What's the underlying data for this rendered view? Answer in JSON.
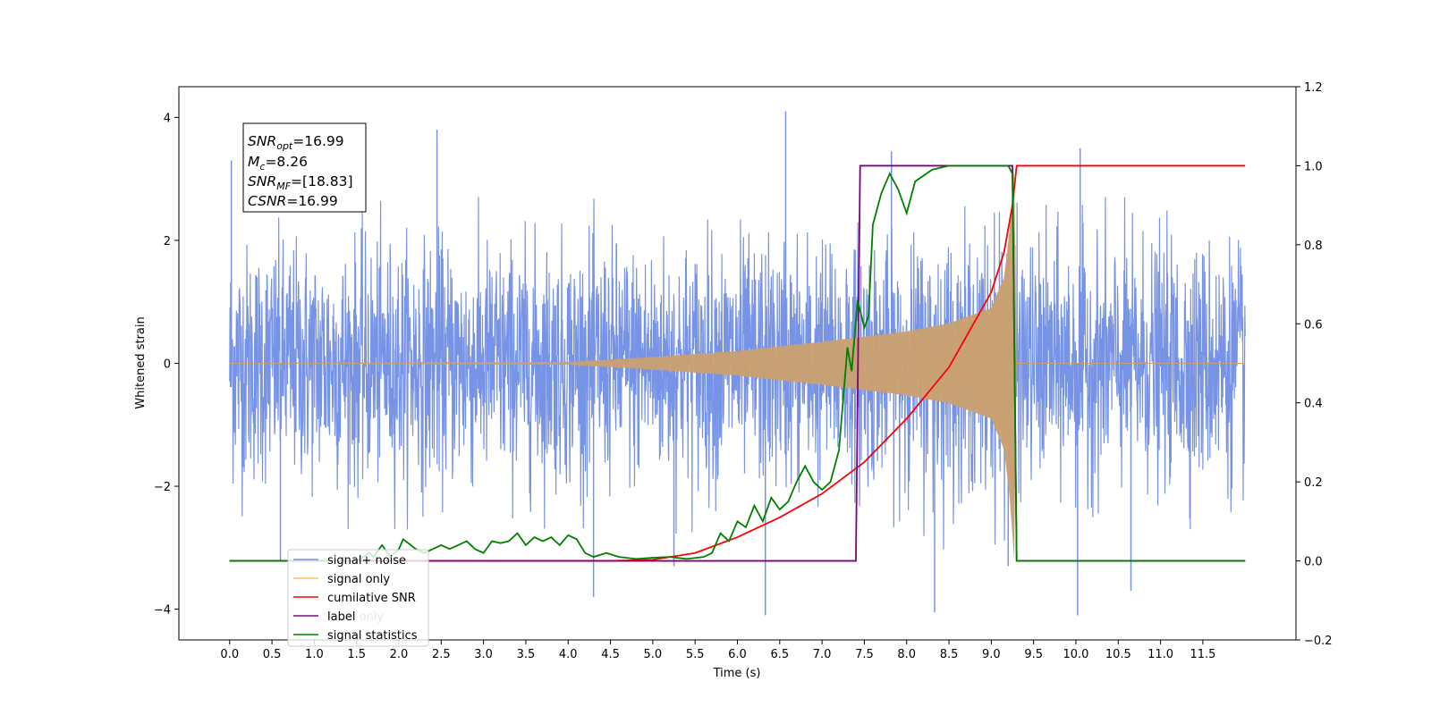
{
  "chart_data": {
    "type": "line",
    "xlabel": "Time (s)",
    "ylabel": "Whitened strain",
    "xlim": [
      -0.6,
      12.6
    ],
    "ylim": [
      -4.5,
      4.5
    ],
    "y2lim": [
      -0.2,
      1.2
    ],
    "x_ticks": [
      "0.0",
      "0.5",
      "1.0",
      "1.5",
      "2.0",
      "2.5",
      "3.0",
      "3.5",
      "4.0",
      "4.5",
      "5.0",
      "5.5",
      "6.0",
      "6.5",
      "7.0",
      "7.5",
      "8.0",
      "8.5",
      "9.0",
      "9.5",
      "10.0",
      "10.5",
      "11.0",
      "11.5"
    ],
    "y_ticks": [
      "4",
      "2",
      "0",
      "−2",
      "−4"
    ],
    "y2_ticks": [
      "1.2",
      "1.0",
      "0.8",
      "0.6",
      "0.4",
      "0.2",
      "0.0",
      "−0.2"
    ],
    "annotation": {
      "snr_opt": {
        "base": "SNR",
        "sub": "opt",
        "value": "=16.99"
      },
      "mc": {
        "base": "M",
        "sub": "c",
        "value": "=8.26"
      },
      "snr_mf": {
        "base": "SNR",
        "sub": "MF",
        "value": "=[18.83]"
      },
      "csnr": {
        "base": "CSNR",
        "value": "=16.99"
      }
    },
    "legend": {
      "placement": "lower-left",
      "entries": [
        "signal+ noise",
        "signal only",
        "cumilative SNR",
        "label",
        "signal statistics"
      ],
      "hidden_entries": [
        "label only"
      ]
    },
    "series": [
      {
        "name": "signal+ noise",
        "axis": "left",
        "color": "#7793e6",
        "description": "whitened noise plus chirp, amplitude mostly within ±2.7 with spikes to ±4.1",
        "x_range": [
          0.0,
          12.0
        ],
        "peaks": [
          [
            0.02,
            3.3
          ],
          [
            0.6,
            -3.2
          ],
          [
            2.45,
            3.8
          ],
          [
            4.3,
            -3.8
          ],
          [
            5.25,
            -3.3
          ],
          [
            6.33,
            -4.1
          ],
          [
            6.57,
            4.1
          ],
          [
            7.82,
            3.45
          ],
          [
            8.33,
            -4.05
          ],
          [
            9.2,
            -3.3
          ],
          [
            10.02,
            -4.1
          ],
          [
            10.05,
            3.5
          ],
          [
            10.65,
            -3.7
          ]
        ]
      },
      {
        "name": "signal only",
        "axis": "left",
        "color": "#c8a072",
        "description": "inspiral chirp waveform, envelope grows until merger at ~9.27 s",
        "envelope": [
          [
            0.0,
            0.0
          ],
          [
            4.0,
            0.02
          ],
          [
            5.0,
            0.1
          ],
          [
            6.0,
            0.2
          ],
          [
            7.0,
            0.35
          ],
          [
            8.0,
            0.52
          ],
          [
            8.5,
            0.65
          ],
          [
            9.0,
            0.9
          ],
          [
            9.15,
            1.4
          ],
          [
            9.22,
            2.2
          ],
          [
            9.27,
            3.2
          ],
          [
            9.3,
            0.0
          ],
          [
            12.0,
            0.0
          ]
        ]
      },
      {
        "name": "cumilative SNR",
        "axis": "right",
        "color": "#ff0000",
        "points": [
          [
            0.0,
            0.0
          ],
          [
            4.5,
            0.0
          ],
          [
            5.0,
            0.003
          ],
          [
            5.5,
            0.02
          ],
          [
            6.0,
            0.06
          ],
          [
            6.5,
            0.11
          ],
          [
            7.0,
            0.17
          ],
          [
            7.5,
            0.25
          ],
          [
            8.0,
            0.36
          ],
          [
            8.5,
            0.49
          ],
          [
            9.0,
            0.68
          ],
          [
            9.15,
            0.78
          ],
          [
            9.25,
            0.9
          ],
          [
            9.3,
            1.0
          ],
          [
            12.0,
            1.0
          ]
        ]
      },
      {
        "name": "label",
        "axis": "right",
        "color": "#800080",
        "points": [
          [
            0.0,
            0.0
          ],
          [
            7.4,
            0.0
          ],
          [
            7.45,
            1.0
          ],
          [
            9.25,
            1.0
          ],
          [
            9.3,
            0.0
          ],
          [
            12.0,
            0.0
          ]
        ]
      },
      {
        "name": "signal statistics",
        "axis": "right",
        "color": "#008000",
        "points": [
          [
            0.0,
            0.0
          ],
          [
            1.5,
            0.0
          ],
          [
            1.65,
            0.02
          ],
          [
            1.7,
            0.01
          ],
          [
            1.8,
            0.04
          ],
          [
            1.9,
            0.01
          ],
          [
            2.0,
            0.03
          ],
          [
            2.05,
            0.055
          ],
          [
            2.2,
            0.03
          ],
          [
            2.3,
            0.02
          ],
          [
            2.4,
            0.03
          ],
          [
            2.5,
            0.04
          ],
          [
            2.6,
            0.03
          ],
          [
            2.7,
            0.04
          ],
          [
            2.8,
            0.05
          ],
          [
            2.9,
            0.03
          ],
          [
            3.0,
            0.02
          ],
          [
            3.1,
            0.05
          ],
          [
            3.2,
            0.045
          ],
          [
            3.3,
            0.05
          ],
          [
            3.4,
            0.07
          ],
          [
            3.5,
            0.04
          ],
          [
            3.6,
            0.06
          ],
          [
            3.7,
            0.05
          ],
          [
            3.8,
            0.06
          ],
          [
            3.9,
            0.04
          ],
          [
            4.0,
            0.065
          ],
          [
            4.1,
            0.055
          ],
          [
            4.2,
            0.02
          ],
          [
            4.3,
            0.01
          ],
          [
            4.45,
            0.02
          ],
          [
            4.6,
            0.01
          ],
          [
            4.8,
            0.005
          ],
          [
            5.0,
            0.008
          ],
          [
            5.2,
            0.01
          ],
          [
            5.4,
            0.005
          ],
          [
            5.6,
            0.01
          ],
          [
            5.7,
            0.02
          ],
          [
            5.8,
            0.07
          ],
          [
            5.9,
            0.05
          ],
          [
            6.0,
            0.1
          ],
          [
            6.1,
            0.085
          ],
          [
            6.2,
            0.14
          ],
          [
            6.3,
            0.1
          ],
          [
            6.4,
            0.16
          ],
          [
            6.5,
            0.13
          ],
          [
            6.6,
            0.15
          ],
          [
            6.7,
            0.2
          ],
          [
            6.8,
            0.24
          ],
          [
            6.9,
            0.2
          ],
          [
            7.0,
            0.18
          ],
          [
            7.1,
            0.2
          ],
          [
            7.2,
            0.28
          ],
          [
            7.3,
            0.54
          ],
          [
            7.35,
            0.48
          ],
          [
            7.42,
            0.66
          ],
          [
            7.5,
            0.59
          ],
          [
            7.55,
            0.62
          ],
          [
            7.6,
            0.85
          ],
          [
            7.7,
            0.93
          ],
          [
            7.8,
            0.98
          ],
          [
            7.9,
            0.94
          ],
          [
            8.0,
            0.88
          ],
          [
            8.1,
            0.96
          ],
          [
            8.3,
            0.99
          ],
          [
            8.5,
            1.0
          ],
          [
            9.2,
            1.0
          ],
          [
            9.25,
            0.98
          ],
          [
            9.3,
            0.0
          ],
          [
            12.0,
            0.0
          ]
        ]
      }
    ]
  }
}
